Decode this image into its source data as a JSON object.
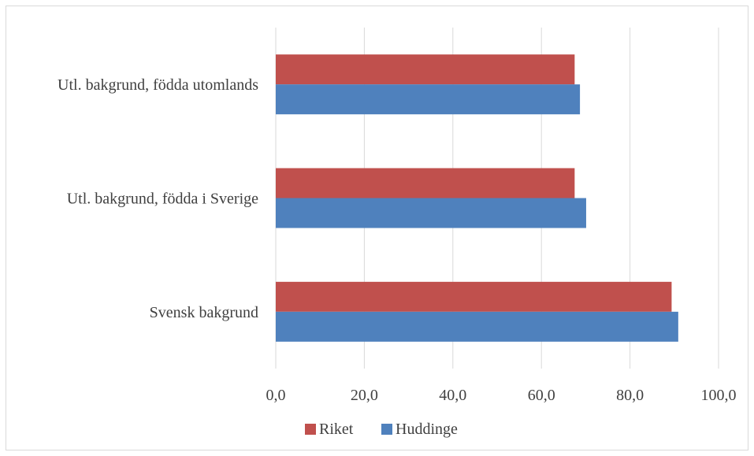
{
  "chart_data": {
    "type": "bar",
    "orientation": "horizontal",
    "categories": [
      "Utl. bakgrund, födda utomlands",
      "Utl. bakgrund, födda i Sverige",
      "Svensk bakgrund"
    ],
    "series": [
      {
        "name": "Riket",
        "color": "#c0504d",
        "values": [
          67.5,
          67.5,
          89.4
        ]
      },
      {
        "name": "Huddinge",
        "color": "#4f81bd",
        "values": [
          68.7,
          70.1,
          90.9
        ]
      }
    ],
    "xlim": [
      0,
      100
    ],
    "ticks": [
      "0,0",
      "20,0",
      "40,0",
      "60,0",
      "80,0",
      "100,0"
    ],
    "tick_values": [
      0,
      20,
      40,
      60,
      80,
      100
    ],
    "grid": true,
    "legend_position": "bottom"
  }
}
